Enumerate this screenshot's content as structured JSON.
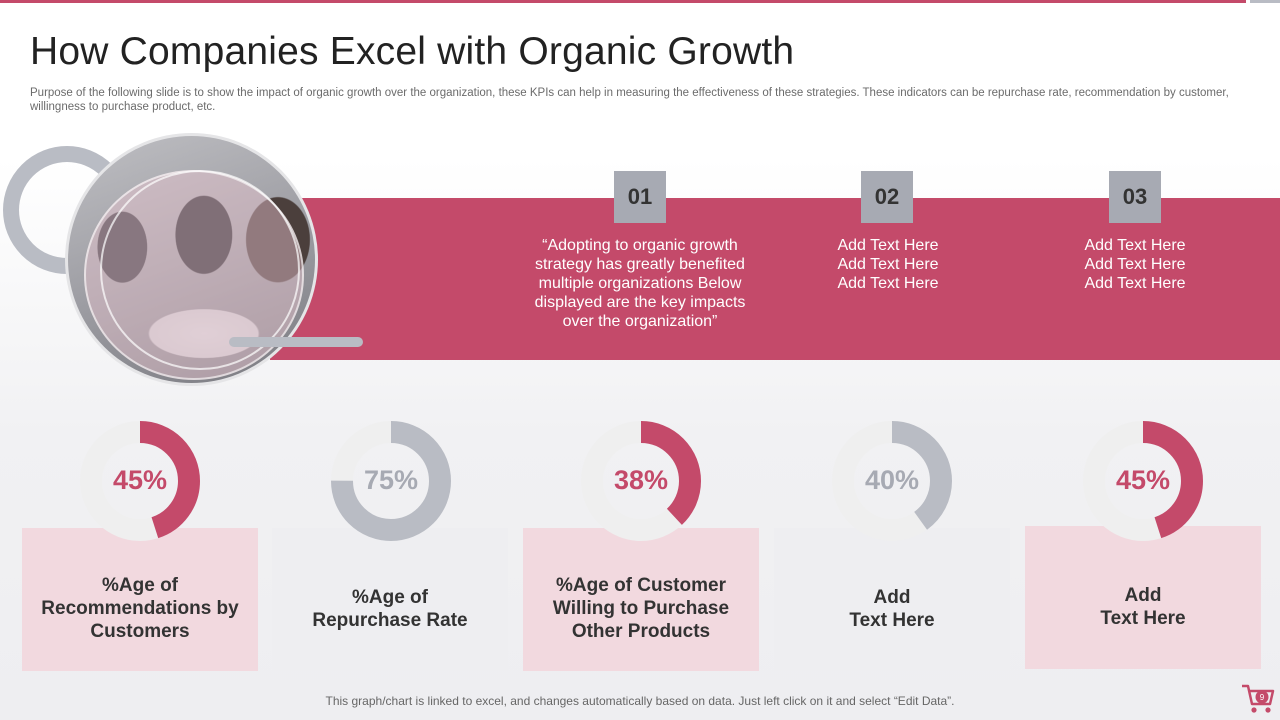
{
  "title": "How Companies Excel with Organic Growth",
  "subtitle": "Purpose of the following slide is to show the impact of organic growth over the organization, these KPIs  can help in measuring the effectiveness of these strategies. These indicators can  be repurchase rate, recommendation by customer, willingness to purchase product, etc.",
  "colors": {
    "accent": "#c44a6a",
    "grey": "#b9bcc4",
    "pink_card": "#f2d9df",
    "grey_card": "#eeeef1",
    "track": "#efefef"
  },
  "steps": [
    {
      "number": "01",
      "lines": [
        "“Adopting to organic growth",
        "strategy has greatly benefited",
        "multiple organizations Below",
        "displayed are the key impacts",
        "over the organization”"
      ]
    },
    {
      "number": "02",
      "lines": [
        "Add Text Here",
        "Add Text Here",
        "Add Text Here"
      ]
    },
    {
      "number": "03",
      "lines": [
        "Add Text Here",
        "Add Text Here",
        "Add Text Here"
      ]
    }
  ],
  "kpis": [
    {
      "percent_label": "45%",
      "value": 45,
      "color": "pink",
      "lines": [
        "%Age of",
        "Recommendations by",
        "Customers"
      ]
    },
    {
      "percent_label": "75%",
      "value": 75,
      "color": "grey",
      "lines": [
        "%Age of",
        "Repurchase Rate"
      ]
    },
    {
      "percent_label": "38%",
      "value": 38,
      "color": "pink",
      "lines": [
        "%Age of Customer",
        "Willing to Purchase",
        "Other Products"
      ]
    },
    {
      "percent_label": "40%",
      "value": 40,
      "color": "grey",
      "lines": [
        "Add",
        "Text Here"
      ]
    },
    {
      "percent_label": "45%",
      "value": 45,
      "color": "pink",
      "lines": [
        "Add",
        "Text Here"
      ]
    }
  ],
  "footer": "This graph/chart is linked to excel,  and changes automatically based on data. Just left click on it and select “Edit Data”.",
  "page_number": "9",
  "icons": {
    "cart": "shopping-cart-icon"
  }
}
